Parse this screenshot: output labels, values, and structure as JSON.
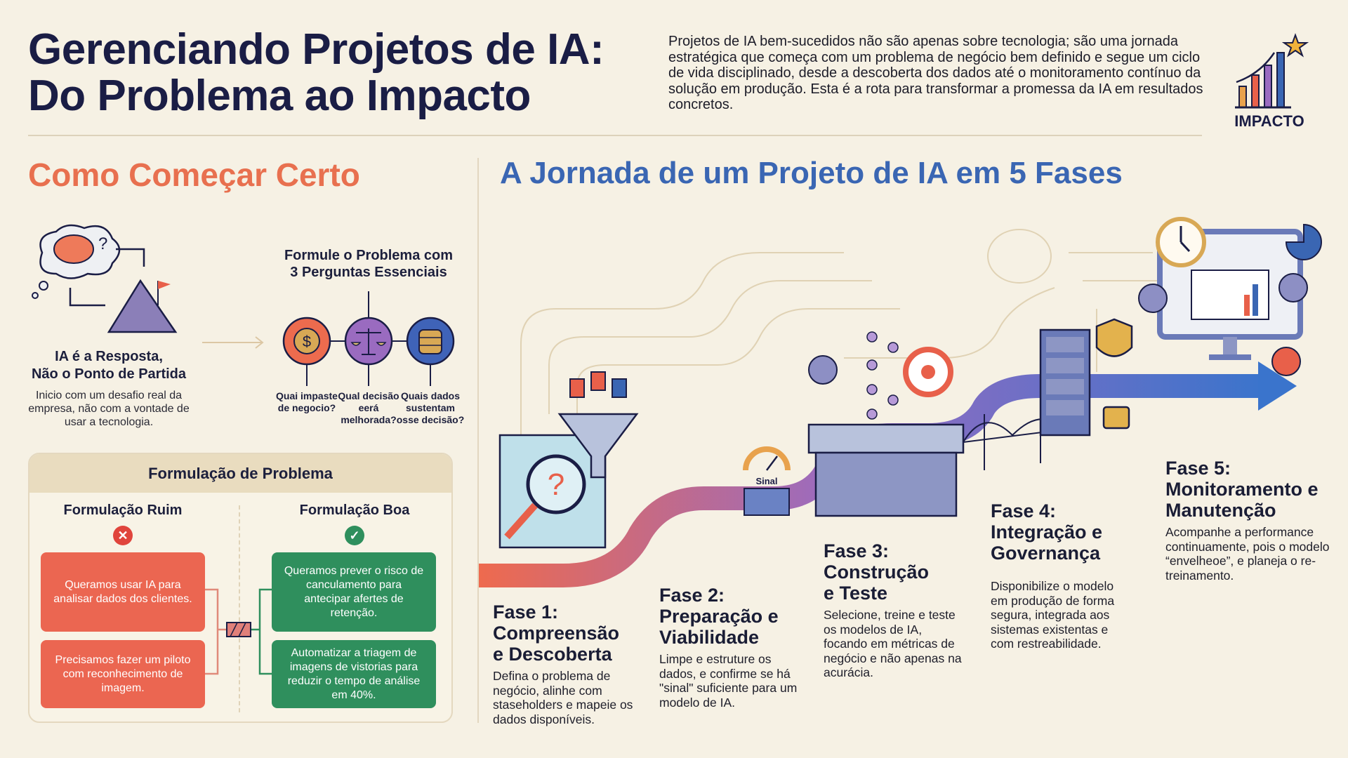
{
  "header": {
    "title_line1": "Gerenciando Projetos de IA:",
    "title_line2": "Do Problema ao Impacto",
    "intro": "Projetos de IA bem-sucedidos não são apenas sobre tecnologia; são uma jornada estratégica que começa com um problema de negócio bem definido e segue um ciclo de vida disciplinado, desde a descoberta dos dados até o monitoramento contínuo da solução em produção. Esta é a rota para transformar a promessa da IA em resultados concretos.",
    "logo_label": "IMPACTO"
  },
  "left": {
    "heading": "Como Começar Certo",
    "start": {
      "title_line1": "IA é a Resposta,",
      "title_line2": "Não o Ponto de Partida",
      "desc": "Inicio com um desafio real da empresa, não com a vontade de usar a tecnologia."
    },
    "questions": {
      "heading_line1": "Formule o Problema com",
      "heading_line2": "3 Perguntas Essenciais",
      "items": [
        {
          "label": "Quai impaste de negocio?",
          "icon": "money-cycle-icon",
          "color": "#ec6b4e"
        },
        {
          "label": "Qual decisão eerá melhorada?",
          "icon": "scale-icon",
          "color": "#9a6bc0"
        },
        {
          "label": "Quais dados sustentam osse decisão?",
          "icon": "database-icon",
          "color": "#3f63b8"
        }
      ]
    },
    "formulation": {
      "title": "Formulação de Problema",
      "bad_heading": "Formulação Ruim",
      "good_heading": "Formulação Boa",
      "bad": [
        "Queramos usar IA para analisar dados dos clientes.",
        "Precisamos fazer um piloto com reconhecimento de imagem."
      ],
      "good": [
        "Queramos prever o risco de canculamento para antecipar afertes de retenção.",
        "Automatizar a triagem de imagens de vistorias para reduzir o tempo de análise em 40%."
      ]
    }
  },
  "journey": {
    "heading": "A Jornada de um Projeto de IA em 5 Fases",
    "signal_label": "Sinal",
    "phases": [
      {
        "num": "Fase 1:",
        "title": "Compreensão e Descoberta",
        "desc": "Defina o problema de negócio, alinhe com staseholders e mapeie os dados disponíveis."
      },
      {
        "num": "Fase 2:",
        "title": "Preparação e Viabilidade",
        "desc": "Limpe e estruture os dados, e confirme se há \"sinal\" suficiente para um modelo de IA."
      },
      {
        "num": "Fase 3:",
        "title": "Construção e Teste",
        "desc": "Selecione, treine e teste os modelos de IA, focando em métricas de negócio e não apenas na acurácia."
      },
      {
        "num": "Fase 4:",
        "title": "Integração e Governança",
        "desc": "Disponibilize o modelo em produção de forma segura, integrada aos sistemas existentas e com restreabilidade."
      },
      {
        "num": "Fase 5:",
        "title": "Monitoramento e Manutenção",
        "desc": "Acompanhe a performance continuamente, pois o modelo “envelheoe”, e planeja o re-treinamento."
      }
    ]
  },
  "colors": {
    "navy": "#1a1d45",
    "coral": "#e8704f",
    "blue": "#3a66b3",
    "red": "#eb6651",
    "green": "#2f8f5d",
    "purple": "#8a62b8"
  }
}
